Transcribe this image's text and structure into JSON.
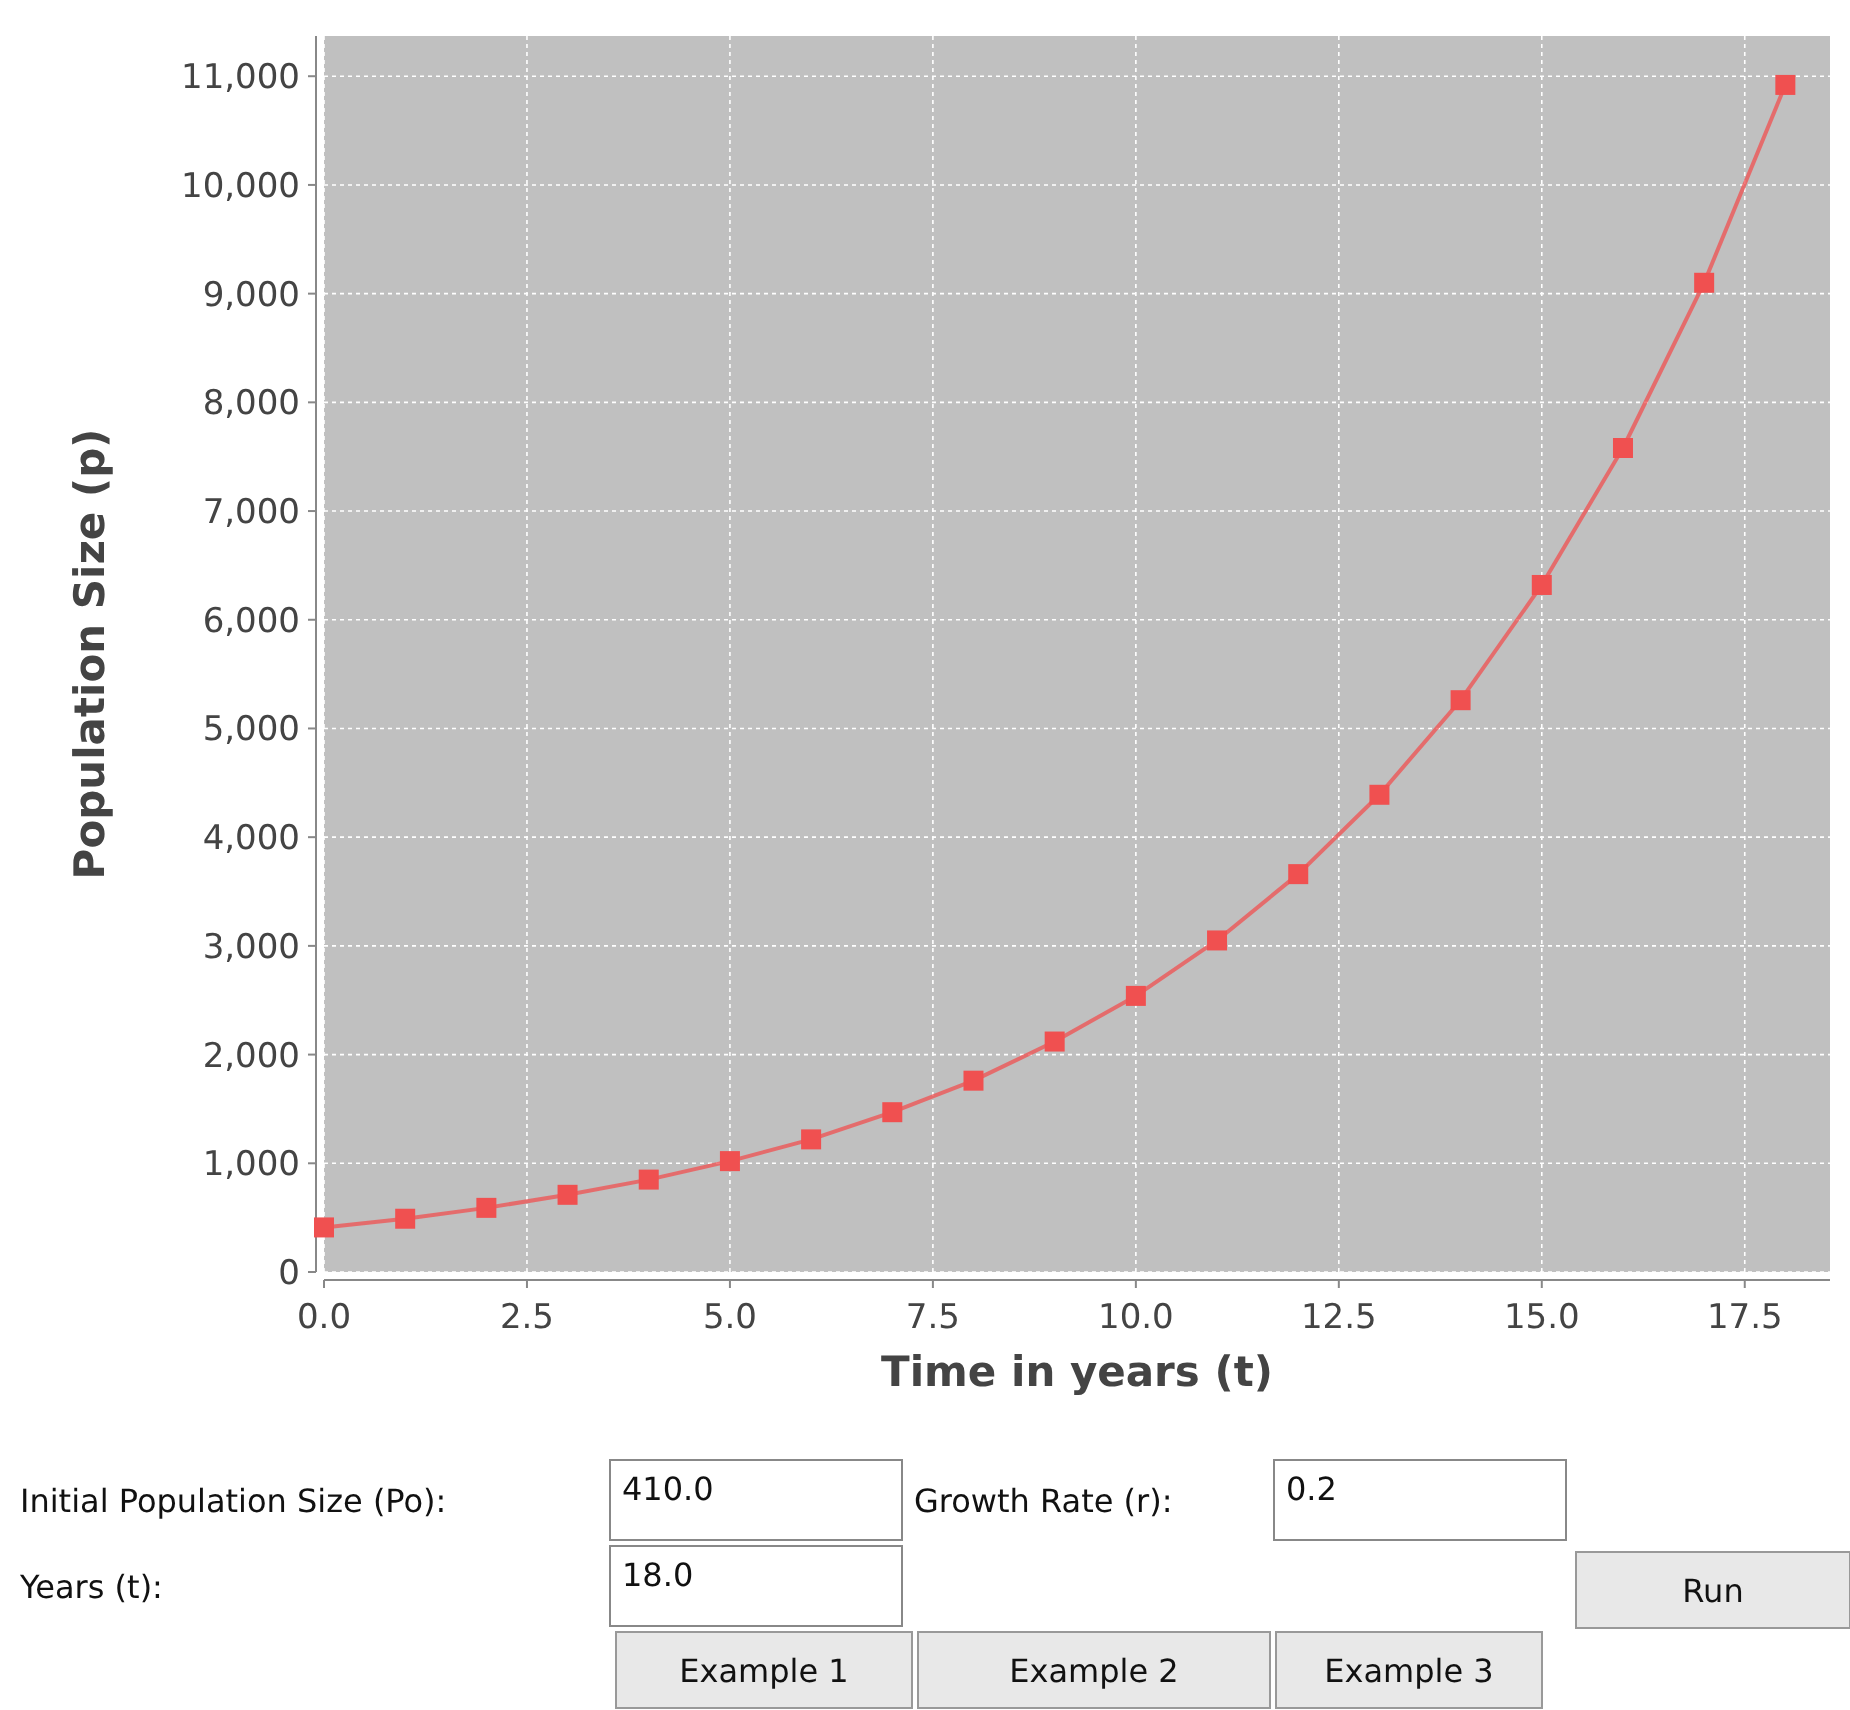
{
  "chart_data": [
    {
      "type": "line",
      "xlabel": "Time in years (t)",
      "ylabel": "Population Size (p)",
      "x": [
        0,
        1,
        2,
        3,
        4,
        5,
        6,
        7,
        8,
        9,
        10,
        11,
        12,
        13,
        14,
        15,
        16,
        17,
        18
      ],
      "series": [
        {
          "color": "#f05050",
          "values": [
            410,
            490,
            590,
            710,
            850,
            1020,
            1220,
            1470,
            1760,
            2120,
            2540,
            3050,
            3660,
            4390,
            5260,
            6320,
            7580,
            9100,
            10920
          ]
        }
      ],
      "xlim": [
        0,
        18.55
      ],
      "ylim": [
        0,
        11370
      ],
      "xticks": [
        {
          "value": 0,
          "label": "0.0"
        },
        {
          "value": 2.5,
          "label": "2.5"
        },
        {
          "value": 5,
          "label": "5.0"
        },
        {
          "value": 7.5,
          "label": "7.5"
        },
        {
          "value": 10,
          "label": "10.0"
        },
        {
          "value": 12.5,
          "label": "12.5"
        },
        {
          "value": 15,
          "label": "15.0"
        },
        {
          "value": 17.5,
          "label": "17.5"
        }
      ],
      "yticks": [
        0,
        {
          "value": 1000,
          "label": "1,000"
        },
        {
          "value": 2000,
          "label": "2,000"
        },
        {
          "value": 3000,
          "label": "3,000"
        },
        {
          "value": 4000,
          "label": "4,000"
        },
        {
          "value": 5000,
          "label": "5,000"
        },
        {
          "value": 6000,
          "label": "6,000"
        },
        {
          "value": 7000,
          "label": "7,000"
        },
        {
          "value": 8000,
          "label": "8,000"
        },
        {
          "value": 9000,
          "label": "9,000"
        },
        {
          "value": 10000,
          "label": "10,000"
        },
        {
          "value": 11000,
          "label": "11,000"
        }
      ],
      "grid": true,
      "marker": "square",
      "line_style": "solid"
    },
    {
      "type": "other",
      "annotations": [
        "Initial Population Size (Po):",
        "410.0",
        "Growth Rate (r):",
        "0.2",
        "Years (t):",
        "18.0",
        "Run",
        "Example 1",
        "Example 2",
        "Example 3"
      ]
    }
  ]
}
